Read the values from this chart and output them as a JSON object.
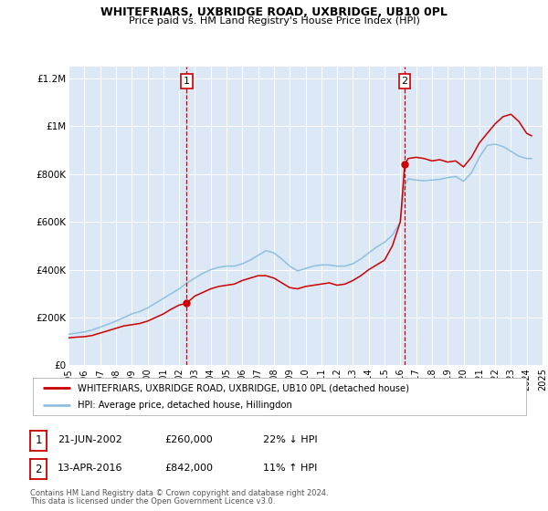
{
  "title_line1": "WHITEFRIARS, UXBRIDGE ROAD, UXBRIDGE, UB10 0PL",
  "title_line2": "Price paid vs. HM Land Registry's House Price Index (HPI)",
  "background_color": "#ffffff",
  "plot_bg_color": "#dce8f5",
  "ylim": [
    0,
    1250000
  ],
  "yticks": [
    0,
    200000,
    400000,
    600000,
    800000,
    1000000,
    1200000
  ],
  "ytick_labels": [
    "£0",
    "£200K",
    "£400K",
    "£600K",
    "£800K",
    "£1M",
    "£1.2M"
  ],
  "xmin_year": 1995,
  "xmax_year": 2025,
  "xtick_years": [
    1995,
    1996,
    1997,
    1998,
    1999,
    2000,
    2001,
    2002,
    2003,
    2004,
    2005,
    2006,
    2007,
    2008,
    2009,
    2010,
    2011,
    2012,
    2013,
    2014,
    2015,
    2016,
    2017,
    2018,
    2019,
    2020,
    2021,
    2022,
    2023,
    2024,
    2025
  ],
  "red_line_color": "#cc0000",
  "blue_line_color": "#90c0e0",
  "marker1_date": 2002.47,
  "marker1_value": 260000,
  "marker2_date": 2016.28,
  "marker2_value": 842000,
  "vline1_date": 2002.47,
  "vline2_date": 2016.28,
  "legend_label_red": "WHITEFRIARS, UXBRIDGE ROAD, UXBRIDGE, UB10 0PL (detached house)",
  "legend_label_blue": "HPI: Average price, detached house, Hillingdon",
  "table_row1": [
    "1",
    "21-JUN-2002",
    "£260,000",
    "22% ↓ HPI"
  ],
  "table_row2": [
    "2",
    "13-APR-2016",
    "£842,000",
    "11% ↑ HPI"
  ],
  "footer1": "Contains HM Land Registry data © Crown copyright and database right 2024.",
  "footer2": "This data is licensed under the Open Government Licence v3.0.",
  "red_data": {
    "years": [
      1995.0,
      1995.5,
      1996.0,
      1996.5,
      1997.0,
      1997.5,
      1998.0,
      1998.5,
      1999.0,
      1999.5,
      2000.0,
      2000.5,
      2001.0,
      2001.5,
      2002.0,
      2002.47,
      2003.0,
      2003.5,
      2004.0,
      2004.5,
      2005.0,
      2005.5,
      2006.0,
      2006.5,
      2007.0,
      2007.5,
      2008.0,
      2008.5,
      2009.0,
      2009.5,
      2010.0,
      2010.5,
      2011.0,
      2011.5,
      2012.0,
      2012.5,
      2013.0,
      2013.5,
      2014.0,
      2014.5,
      2015.0,
      2015.5,
      2016.0,
      2016.28,
      2016.5,
      2017.0,
      2017.5,
      2018.0,
      2018.5,
      2019.0,
      2019.5,
      2020.0,
      2020.5,
      2021.0,
      2021.5,
      2022.0,
      2022.5,
      2023.0,
      2023.5,
      2024.0,
      2024.3
    ],
    "values": [
      115000,
      118000,
      120000,
      125000,
      135000,
      145000,
      155000,
      165000,
      170000,
      175000,
      185000,
      200000,
      215000,
      235000,
      252000,
      260000,
      290000,
      305000,
      320000,
      330000,
      335000,
      340000,
      355000,
      365000,
      375000,
      375000,
      365000,
      345000,
      325000,
      320000,
      330000,
      335000,
      340000,
      345000,
      335000,
      340000,
      355000,
      375000,
      400000,
      420000,
      440000,
      500000,
      600000,
      842000,
      865000,
      870000,
      865000,
      855000,
      860000,
      850000,
      855000,
      830000,
      870000,
      930000,
      970000,
      1010000,
      1040000,
      1050000,
      1020000,
      970000,
      960000
    ]
  },
  "blue_data": {
    "years": [
      1995.0,
      1995.5,
      1996.0,
      1996.5,
      1997.0,
      1997.5,
      1998.0,
      1998.5,
      1999.0,
      1999.5,
      2000.0,
      2000.5,
      2001.0,
      2001.5,
      2002.0,
      2002.5,
      2003.0,
      2003.5,
      2004.0,
      2004.5,
      2005.0,
      2005.5,
      2006.0,
      2006.5,
      2007.0,
      2007.5,
      2008.0,
      2008.5,
      2009.0,
      2009.5,
      2010.0,
      2010.5,
      2011.0,
      2011.5,
      2012.0,
      2012.5,
      2013.0,
      2013.5,
      2014.0,
      2014.5,
      2015.0,
      2015.5,
      2016.0,
      2016.28,
      2016.5,
      2017.0,
      2017.5,
      2018.0,
      2018.5,
      2019.0,
      2019.5,
      2020.0,
      2020.5,
      2021.0,
      2021.5,
      2022.0,
      2022.5,
      2023.0,
      2023.5,
      2024.0,
      2024.3
    ],
    "values": [
      130000,
      135000,
      140000,
      148000,
      160000,
      172000,
      185000,
      200000,
      215000,
      225000,
      240000,
      260000,
      280000,
      300000,
      320000,
      345000,
      365000,
      385000,
      400000,
      410000,
      415000,
      415000,
      425000,
      440000,
      460000,
      480000,
      470000,
      445000,
      415000,
      395000,
      405000,
      415000,
      420000,
      420000,
      415000,
      415000,
      425000,
      445000,
      470000,
      495000,
      515000,
      545000,
      600000,
      755000,
      780000,
      775000,
      772000,
      775000,
      778000,
      785000,
      790000,
      770000,
      805000,
      870000,
      920000,
      925000,
      915000,
      895000,
      875000,
      865000,
      865000
    ]
  }
}
